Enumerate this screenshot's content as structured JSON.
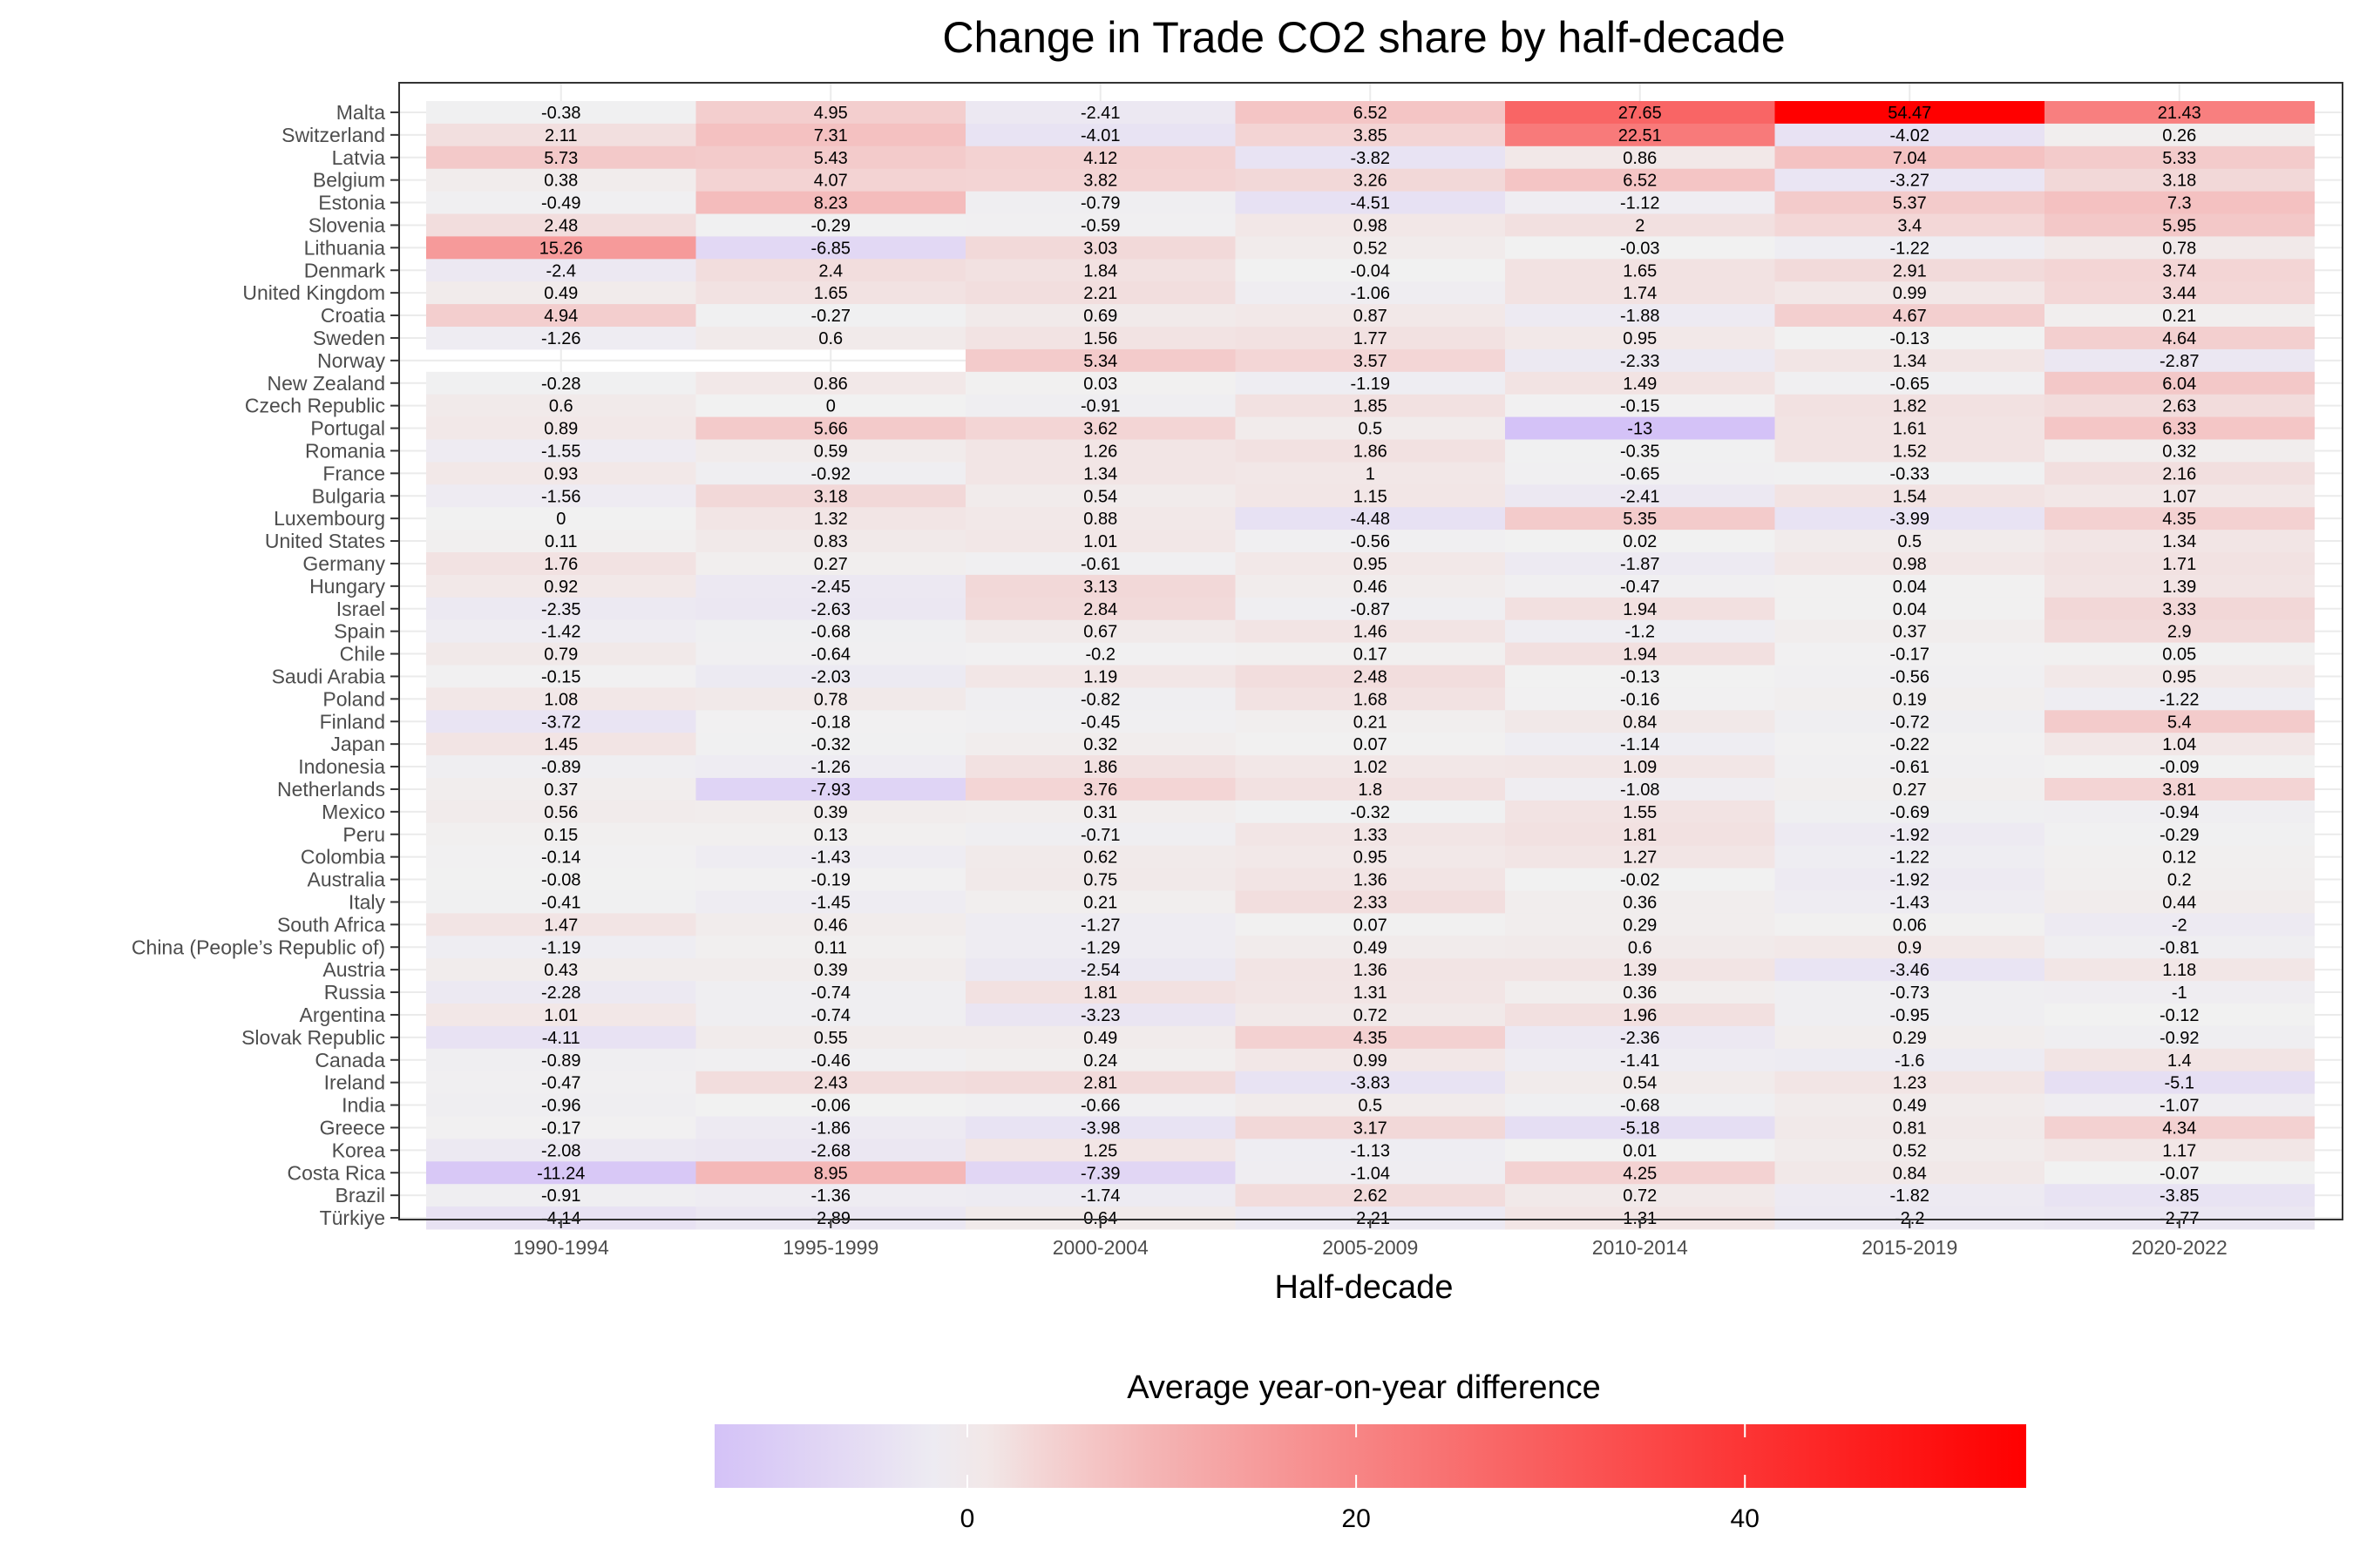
{
  "chart_data": {
    "type": "heatmap",
    "title": "Change in Trade CO2 share by half-decade",
    "xlabel": "Half-decade",
    "ylabel": "",
    "x": [
      "1990-1994",
      "1995-1999",
      "2000-2004",
      "2005-2009",
      "2010-2014",
      "2015-2019",
      "2020-2022"
    ],
    "y": [
      "Malta",
      "Switzerland",
      "Latvia",
      "Belgium",
      "Estonia",
      "Slovenia",
      "Lithuania",
      "Denmark",
      "United Kingdom",
      "Croatia",
      "Sweden",
      "Norway",
      "New Zealand",
      "Czech Republic",
      "Portugal",
      "Romania",
      "France",
      "Bulgaria",
      "Luxembourg",
      "United States",
      "Germany",
      "Hungary",
      "Israel",
      "Spain",
      "Chile",
      "Saudi Arabia",
      "Poland",
      "Finland",
      "Japan",
      "Indonesia",
      "Netherlands",
      "Mexico",
      "Peru",
      "Colombia",
      "Australia",
      "Italy",
      "South Africa",
      "China (People’s Republic of)",
      "Austria",
      "Russia",
      "Argentina",
      "Slovak Republic",
      "Canada",
      "Ireland",
      "India",
      "Greece",
      "Korea",
      "Costa Rica",
      "Brazil",
      "Türkiye"
    ],
    "values": [
      [
        -0.38,
        4.95,
        -2.41,
        6.52,
        27.65,
        54.47,
        21.43
      ],
      [
        2.11,
        7.31,
        -4.01,
        3.85,
        22.51,
        -4.02,
        0.26
      ],
      [
        5.73,
        5.43,
        4.12,
        -3.82,
        0.86,
        7.04,
        5.33
      ],
      [
        0.38,
        4.07,
        3.82,
        3.26,
        6.52,
        -3.27,
        3.18
      ],
      [
        -0.49,
        8.23,
        -0.79,
        -4.51,
        -1.12,
        5.37,
        7.3
      ],
      [
        2.48,
        -0.29,
        -0.59,
        0.98,
        2,
        3.4,
        5.95
      ],
      [
        15.26,
        -6.85,
        3.03,
        0.52,
        -0.03,
        -1.22,
        0.78
      ],
      [
        -2.4,
        2.4,
        1.84,
        -0.04,
        1.65,
        2.91,
        3.74
      ],
      [
        0.49,
        1.65,
        2.21,
        -1.06,
        1.74,
        0.99,
        3.44
      ],
      [
        4.94,
        -0.27,
        0.69,
        0.87,
        -1.88,
        4.67,
        0.21
      ],
      [
        -1.26,
        0.6,
        1.56,
        1.77,
        0.95,
        -0.13,
        4.64
      ],
      [
        null,
        null,
        5.34,
        3.57,
        -2.33,
        1.34,
        -2.87
      ],
      [
        -0.28,
        0.86,
        0.03,
        -1.19,
        1.49,
        -0.65,
        6.04
      ],
      [
        0.6,
        0,
        -0.91,
        1.85,
        -0.15,
        1.82,
        2.63
      ],
      [
        0.89,
        5.66,
        3.62,
        0.5,
        -13,
        1.61,
        6.33
      ],
      [
        -1.55,
        0.59,
        1.26,
        1.86,
        -0.35,
        1.52,
        0.32
      ],
      [
        0.93,
        -0.92,
        1.34,
        1,
        -0.65,
        -0.33,
        2.16
      ],
      [
        -1.56,
        3.18,
        0.54,
        1.15,
        -2.41,
        1.54,
        1.07
      ],
      [
        0,
        1.32,
        0.88,
        -4.48,
        5.35,
        -3.99,
        4.35
      ],
      [
        0.11,
        0.83,
        1.01,
        -0.56,
        0.02,
        0.5,
        1.34
      ],
      [
        1.76,
        0.27,
        -0.61,
        0.95,
        -1.87,
        0.98,
        1.71
      ],
      [
        0.92,
        -2.45,
        3.13,
        0.46,
        -0.47,
        0.04,
        1.39
      ],
      [
        -2.35,
        -2.63,
        2.84,
        -0.87,
        1.94,
        0.04,
        3.33
      ],
      [
        -1.42,
        -0.68,
        0.67,
        1.46,
        -1.2,
        0.37,
        2.9
      ],
      [
        0.79,
        -0.64,
        -0.2,
        0.17,
        1.94,
        -0.17,
        0.05
      ],
      [
        -0.15,
        -2.03,
        1.19,
        2.48,
        -0.13,
        -0.56,
        0.95
      ],
      [
        1.08,
        0.78,
        -0.82,
        1.68,
        -0.16,
        0.19,
        -1.22
      ],
      [
        -3.72,
        -0.18,
        -0.45,
        0.21,
        0.84,
        -0.72,
        5.4
      ],
      [
        1.45,
        -0.32,
        0.32,
        0.07,
        -1.14,
        -0.22,
        1.04
      ],
      [
        -0.89,
        -1.26,
        1.86,
        1.02,
        1.09,
        -0.61,
        -0.09
      ],
      [
        0.37,
        -7.93,
        3.76,
        1.8,
        -1.08,
        0.27,
        3.81
      ],
      [
        0.56,
        0.39,
        0.31,
        -0.32,
        1.55,
        -0.69,
        -0.94
      ],
      [
        0.15,
        0.13,
        -0.71,
        1.33,
        1.81,
        -1.92,
        -0.29
      ],
      [
        -0.14,
        -1.43,
        0.62,
        0.95,
        1.27,
        -1.22,
        0.12
      ],
      [
        -0.08,
        -0.19,
        0.75,
        1.36,
        -0.02,
        -1.92,
        0.2
      ],
      [
        -0.41,
        -1.45,
        0.21,
        2.33,
        0.36,
        -1.43,
        0.44
      ],
      [
        1.47,
        0.46,
        -1.27,
        0.07,
        0.29,
        0.06,
        -2
      ],
      [
        -1.19,
        0.11,
        -1.29,
        0.49,
        0.6,
        0.9,
        -0.81
      ],
      [
        0.43,
        0.39,
        -2.54,
        1.36,
        1.39,
        -3.46,
        1.18
      ],
      [
        -2.28,
        -0.74,
        1.81,
        1.31,
        0.36,
        -0.73,
        -1
      ],
      [
        1.01,
        -0.74,
        -3.23,
        0.72,
        1.96,
        -0.95,
        -0.12
      ],
      [
        -4.11,
        0.55,
        0.49,
        4.35,
        -2.36,
        0.29,
        -0.92
      ],
      [
        -0.89,
        -0.46,
        0.24,
        0.99,
        -1.41,
        -1.6,
        1.4
      ],
      [
        -0.47,
        2.43,
        2.81,
        -3.83,
        0.54,
        1.23,
        -5.1
      ],
      [
        -0.96,
        -0.06,
        -0.66,
        0.5,
        -0.68,
        0.49,
        -1.07
      ],
      [
        -0.17,
        -1.86,
        -3.98,
        3.17,
        -5.18,
        0.81,
        4.34
      ],
      [
        -2.08,
        -2.68,
        1.25,
        -1.13,
        0.01,
        0.52,
        1.17
      ],
      [
        -11.24,
        8.95,
        -7.39,
        -1.04,
        4.25,
        0.84,
        -0.07
      ],
      [
        -0.91,
        -1.36,
        -1.74,
        2.62,
        0.72,
        -1.82,
        -3.85
      ],
      [
        -4.14,
        -2.89,
        0.64,
        -2.21,
        1.31,
        -2.2,
        -2.77
      ]
    ],
    "colorbar": {
      "title": "Average year-on-year difference",
      "ticks": [
        0,
        20,
        40
      ],
      "range": [
        -13,
        54.47
      ],
      "colors": {
        "low": "#d4c2f7",
        "mid": "#f1f1f1",
        "high": "#ff0000"
      }
    },
    "legend_position": "bottom",
    "grid": true
  }
}
